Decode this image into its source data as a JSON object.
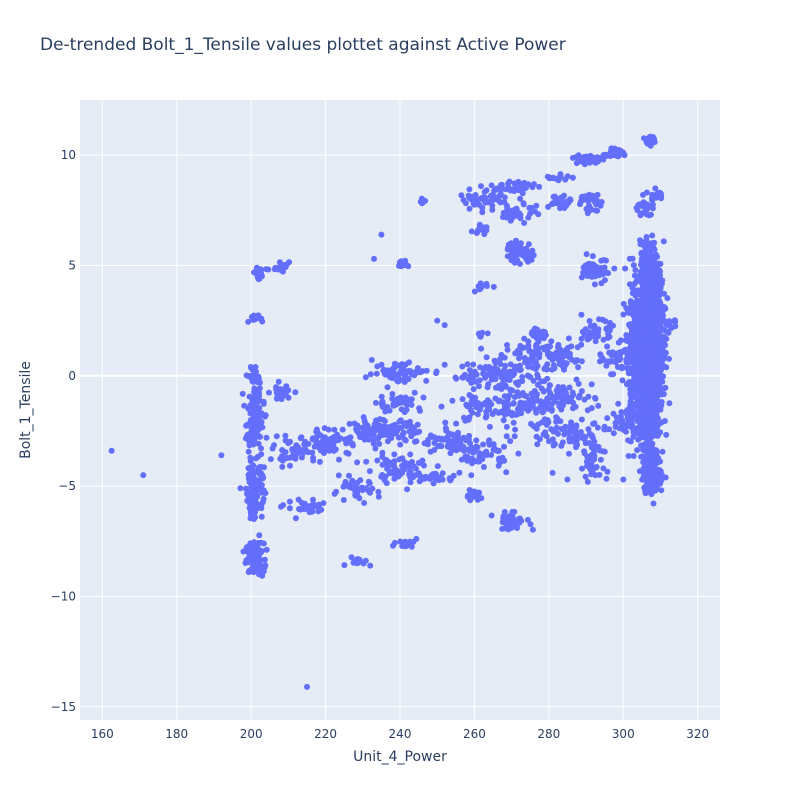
{
  "chart_data": {
    "type": "scatter",
    "title": "De-trended Bolt_1_Tensile values plottet against Active Power",
    "xlabel": "Unit_4_Power",
    "ylabel": "Bolt_1_Tensile",
    "xlim": [
      154,
      326
    ],
    "ylim": [
      -15.6,
      12.5
    ],
    "xticks": [
      160,
      180,
      200,
      220,
      240,
      260,
      280,
      300,
      320
    ],
    "yticks": [
      10,
      5,
      0,
      -5,
      -10,
      -15
    ],
    "xtick_labels": [
      "160",
      "180",
      "200",
      "220",
      "240",
      "260",
      "280",
      "300",
      "320"
    ],
    "ytick_labels": [
      "10",
      "5",
      "0",
      "−5",
      "−10",
      "−15"
    ],
    "grid": true,
    "legend": "none",
    "colors": {
      "marker": "#636efa",
      "plot_bg": "#e5ecf6",
      "grid": "#ffffff",
      "text": "#2a3f5f"
    },
    "clusters": [
      {
        "cx": 201,
        "cy": -8.3,
        "sx": 2.0,
        "sy": 0.6,
        "n": 120
      },
      {
        "cx": 201,
        "cy": -5.0,
        "sx": 2.0,
        "sy": 1.2,
        "n": 120
      },
      {
        "cx": 201,
        "cy": -2.0,
        "sx": 2.0,
        "sy": 1.2,
        "n": 110
      },
      {
        "cx": 201,
        "cy": 0.0,
        "sx": 1.5,
        "sy": 0.4,
        "n": 30
      },
      {
        "cx": 201,
        "cy": 2.6,
        "sx": 1.2,
        "sy": 0.2,
        "n": 14
      },
      {
        "cx": 202,
        "cy": 4.7,
        "sx": 1.5,
        "sy": 0.2,
        "n": 22
      },
      {
        "cx": 208,
        "cy": 4.9,
        "sx": 2.0,
        "sy": 0.25,
        "n": 18
      },
      {
        "cx": 208,
        "cy": -0.8,
        "sx": 2.5,
        "sy": 0.3,
        "n": 30
      },
      {
        "cx": 212,
        "cy": -3.4,
        "sx": 5.0,
        "sy": 0.5,
        "n": 60
      },
      {
        "cx": 222,
        "cy": -3.0,
        "sx": 5.0,
        "sy": 0.5,
        "n": 60
      },
      {
        "cx": 215,
        "cy": -6.0,
        "sx": 5.0,
        "sy": 0.3,
        "n": 30
      },
      {
        "cx": 228,
        "cy": -5.2,
        "sx": 5.0,
        "sy": 0.4,
        "n": 40
      },
      {
        "cx": 235,
        "cy": -2.5,
        "sx": 8.0,
        "sy": 0.4,
        "n": 120
      },
      {
        "cx": 240,
        "cy": -4.2,
        "sx": 8.0,
        "sy": 0.6,
        "n": 70
      },
      {
        "cx": 240,
        "cy": 0.2,
        "sx": 6.0,
        "sy": 0.4,
        "n": 60
      },
      {
        "cx": 240,
        "cy": -1.2,
        "sx": 5.0,
        "sy": 0.4,
        "n": 40
      },
      {
        "cx": 228,
        "cy": -8.4,
        "sx": 3.0,
        "sy": 0.2,
        "n": 14
      },
      {
        "cx": 242,
        "cy": -7.6,
        "sx": 3.0,
        "sy": 0.2,
        "n": 16
      },
      {
        "cx": 241,
        "cy": 5.05,
        "sx": 2.0,
        "sy": 0.1,
        "n": 12
      },
      {
        "cx": 246,
        "cy": 7.9,
        "sx": 1.0,
        "sy": 0.1,
        "n": 8
      },
      {
        "cx": 250,
        "cy": -4.6,
        "sx": 4.0,
        "sy": 0.2,
        "n": 30
      },
      {
        "cx": 253,
        "cy": -3.0,
        "sx": 6.0,
        "sy": 0.4,
        "n": 60
      },
      {
        "cx": 262,
        "cy": -3.5,
        "sx": 6.0,
        "sy": 0.6,
        "n": 60
      },
      {
        "cx": 260,
        "cy": -5.4,
        "sx": 2.0,
        "sy": 0.2,
        "n": 18
      },
      {
        "cx": 262,
        "cy": 8.0,
        "sx": 5.0,
        "sy": 0.4,
        "n": 50
      },
      {
        "cx": 262,
        "cy": 6.6,
        "sx": 2.0,
        "sy": 0.2,
        "n": 14
      },
      {
        "cx": 262,
        "cy": 4.0,
        "sx": 1.5,
        "sy": 0.15,
        "n": 10
      },
      {
        "cx": 262,
        "cy": 1.8,
        "sx": 1.5,
        "sy": 0.2,
        "n": 8
      },
      {
        "cx": 265,
        "cy": 0.0,
        "sx": 10.0,
        "sy": 0.5,
        "n": 100
      },
      {
        "cx": 265,
        "cy": -1.5,
        "sx": 10.0,
        "sy": 0.6,
        "n": 90
      },
      {
        "cx": 270,
        "cy": -6.6,
        "sx": 4.0,
        "sy": 0.3,
        "n": 40
      },
      {
        "cx": 272,
        "cy": 5.6,
        "sx": 3.0,
        "sy": 0.4,
        "n": 60
      },
      {
        "cx": 272,
        "cy": 8.6,
        "sx": 4.0,
        "sy": 0.2,
        "n": 40
      },
      {
        "cx": 272,
        "cy": 7.5,
        "sx": 4.0,
        "sy": 0.5,
        "n": 40
      },
      {
        "cx": 277,
        "cy": 1.9,
        "sx": 2.0,
        "sy": 0.3,
        "n": 22
      },
      {
        "cx": 280,
        "cy": 0.8,
        "sx": 10.0,
        "sy": 0.6,
        "n": 120
      },
      {
        "cx": 280,
        "cy": -1.0,
        "sx": 10.0,
        "sy": 0.6,
        "n": 100
      },
      {
        "cx": 285,
        "cy": -2.5,
        "sx": 10.0,
        "sy": 0.6,
        "n": 90
      },
      {
        "cx": 282,
        "cy": 9.0,
        "sx": 3.0,
        "sy": 0.15,
        "n": 14
      },
      {
        "cx": 283,
        "cy": 7.9,
        "sx": 3.0,
        "sy": 0.3,
        "n": 30
      },
      {
        "cx": 290,
        "cy": 9.8,
        "sx": 3.0,
        "sy": 0.2,
        "n": 40
      },
      {
        "cx": 298,
        "cy": 10.1,
        "sx": 3.0,
        "sy": 0.15,
        "n": 34
      },
      {
        "cx": 291,
        "cy": 7.8,
        "sx": 2.5,
        "sy": 0.5,
        "n": 30
      },
      {
        "cx": 293,
        "cy": 4.8,
        "sx": 3.0,
        "sy": 0.4,
        "n": 60
      },
      {
        "cx": 293,
        "cy": 2.0,
        "sx": 3.0,
        "sy": 0.4,
        "n": 50
      },
      {
        "cx": 292,
        "cy": -3.8,
        "sx": 3.0,
        "sy": 0.8,
        "n": 40
      },
      {
        "cx": 298,
        "cy": 0.8,
        "sx": 3.0,
        "sy": 0.5,
        "n": 40
      },
      {
        "cx": 300,
        "cy": -2.0,
        "sx": 3.0,
        "sy": 0.7,
        "n": 30
      },
      {
        "cx": 303,
        "cy": 1.0,
        "sx": 2.0,
        "sy": 2.8,
        "n": 300
      },
      {
        "cx": 307,
        "cy": 0.0,
        "sx": 2.5,
        "sy": 3.3,
        "n": 900
      },
      {
        "cx": 309,
        "cy": 2.0,
        "sx": 2.0,
        "sy": 2.5,
        "n": 300
      },
      {
        "cx": 307,
        "cy": 4.5,
        "sx": 2.0,
        "sy": 1.3,
        "n": 300
      },
      {
        "cx": 308,
        "cy": -4.5,
        "sx": 2.2,
        "sy": 0.7,
        "n": 150
      },
      {
        "cx": 307,
        "cy": 10.7,
        "sx": 1.0,
        "sy": 0.15,
        "n": 30
      },
      {
        "cx": 309,
        "cy": 8.2,
        "sx": 1.5,
        "sy": 0.2,
        "n": 20
      },
      {
        "cx": 305,
        "cy": 7.6,
        "sx": 2.0,
        "sy": 0.3,
        "n": 20
      },
      {
        "cx": 313,
        "cy": 2.4,
        "sx": 1.0,
        "sy": 0.2,
        "n": 10
      }
    ],
    "points": [
      {
        "x": 162.5,
        "y": -3.4
      },
      {
        "x": 171,
        "y": -4.5
      },
      {
        "x": 192,
        "y": -3.6
      },
      {
        "x": 215,
        "y": -14.1
      },
      {
        "x": 232,
        "y": -8.6
      },
      {
        "x": 235,
        "y": 6.4
      },
      {
        "x": 233,
        "y": 5.3
      },
      {
        "x": 250,
        "y": 2.5
      },
      {
        "x": 252,
        "y": 2.3
      },
      {
        "x": 264,
        "y": 0.4
      },
      {
        "x": 281,
        "y": -4.4
      },
      {
        "x": 285,
        "y": -4.7
      },
      {
        "x": 300,
        "y": -4.7
      }
    ]
  }
}
